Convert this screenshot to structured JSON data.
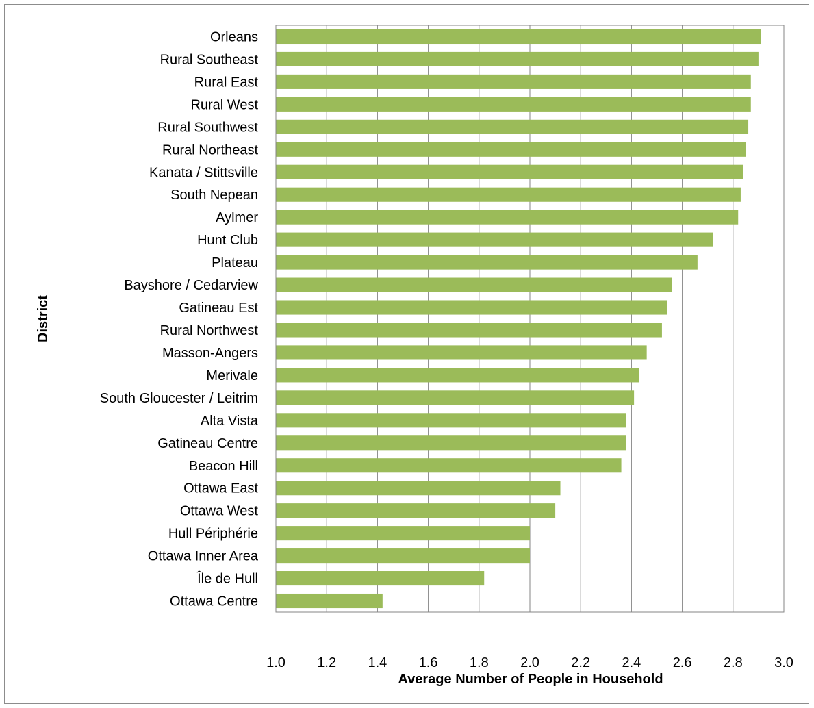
{
  "chart_data": {
    "type": "bar",
    "orientation": "horizontal",
    "title": "",
    "xlabel": "Average Number of People in Household",
    "ylabel": "District",
    "xlim": [
      1.0,
      3.0
    ],
    "x_ticks": [
      "1.0",
      "1.2",
      "1.4",
      "1.6",
      "1.8",
      "2.0",
      "2.2",
      "2.4",
      "2.6",
      "2.8",
      "3.0"
    ],
    "grid": "vertical",
    "bar_color": "#9bbb59",
    "categories": [
      "Orleans",
      "Rural Southeast",
      "Rural East",
      "Rural West",
      "Rural Southwest",
      "Rural Northeast",
      "Kanata / Stittsville",
      "South Nepean",
      "Aylmer",
      "Hunt Club",
      "Plateau",
      "Bayshore / Cedarview",
      "Gatineau Est",
      "Rural Northwest",
      "Masson-Angers",
      "Merivale",
      "South Gloucester / Leitrim",
      "Alta Vista",
      "Gatineau Centre",
      "Beacon Hill",
      "Ottawa East",
      "Ottawa West",
      "Hull Périphérie",
      "Ottawa Inner Area",
      "Île de Hull",
      "Ottawa Centre"
    ],
    "values": [
      2.91,
      2.9,
      2.87,
      2.87,
      2.86,
      2.85,
      2.84,
      2.83,
      2.82,
      2.72,
      2.66,
      2.56,
      2.54,
      2.52,
      2.46,
      2.43,
      2.41,
      2.38,
      2.38,
      2.36,
      2.12,
      2.1,
      2.0,
      2.0,
      1.82,
      1.42
    ]
  }
}
